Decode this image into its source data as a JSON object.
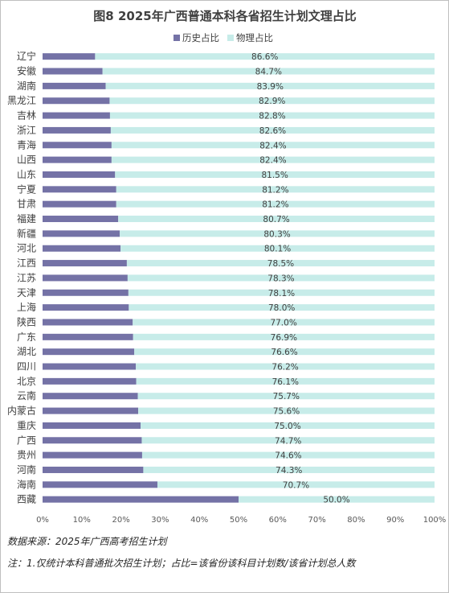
{
  "chart_data": {
    "type": "bar",
    "orientation": "horizontal",
    "stacked": true,
    "percent_stacked": true,
    "title": "图8 2025年广西普通本科各省招生计划文理占比",
    "series": [
      {
        "name": "历史占比",
        "color": "#7472a6"
      },
      {
        "name": "物理占比",
        "color": "#c7ece9"
      }
    ],
    "categories": [
      "辽宁",
      "安徽",
      "湖南",
      "黑龙江",
      "吉林",
      "浙江",
      "青海",
      "山西",
      "山东",
      "宁夏",
      "甘肃",
      "福建",
      "新疆",
      "河北",
      "江西",
      "江苏",
      "天津",
      "上海",
      "陕西",
      "广东",
      "湖北",
      "四川",
      "北京",
      "云南",
      "内蒙古",
      "重庆",
      "广西",
      "贵州",
      "河南",
      "海南",
      "西藏"
    ],
    "physics_values": [
      86.6,
      84.7,
      83.9,
      82.9,
      82.8,
      82.6,
      82.4,
      82.4,
      81.5,
      81.2,
      81.2,
      80.7,
      80.3,
      80.1,
      78.5,
      78.3,
      78.1,
      78.0,
      77.0,
      76.9,
      76.6,
      76.2,
      76.1,
      75.7,
      75.6,
      75.0,
      74.7,
      74.6,
      74.3,
      70.7,
      50.0
    ],
    "data_labels": [
      "86.6%",
      "84.7%",
      "83.9%",
      "82.9%",
      "82.8%",
      "82.6%",
      "82.4%",
      "82.4%",
      "81.5%",
      "81.2%",
      "81.2%",
      "80.7%",
      "80.3%",
      "80.1%",
      "78.5%",
      "78.3%",
      "78.1%",
      "78.0%",
      "77.0%",
      "76.9%",
      "76.6%",
      "76.2%",
      "76.1%",
      "75.7%",
      "75.6%",
      "75.0%",
      "74.7%",
      "74.6%",
      "74.3%",
      "70.7%",
      "50.0%"
    ],
    "x_ticks": [
      "0%",
      "10%",
      "20%",
      "30%",
      "40%",
      "50%",
      "60%",
      "70%",
      "80%",
      "90%",
      "100%"
    ],
    "xlim": [
      0,
      100
    ],
    "legend_position": "top",
    "grid": false
  },
  "notes": {
    "source": "数据来源：2025年广西高考招生计划",
    "footnote": "注：1.仅统计本科普通批次招生计划；占比=该省份该科目计划数/该省计划总人数"
  }
}
